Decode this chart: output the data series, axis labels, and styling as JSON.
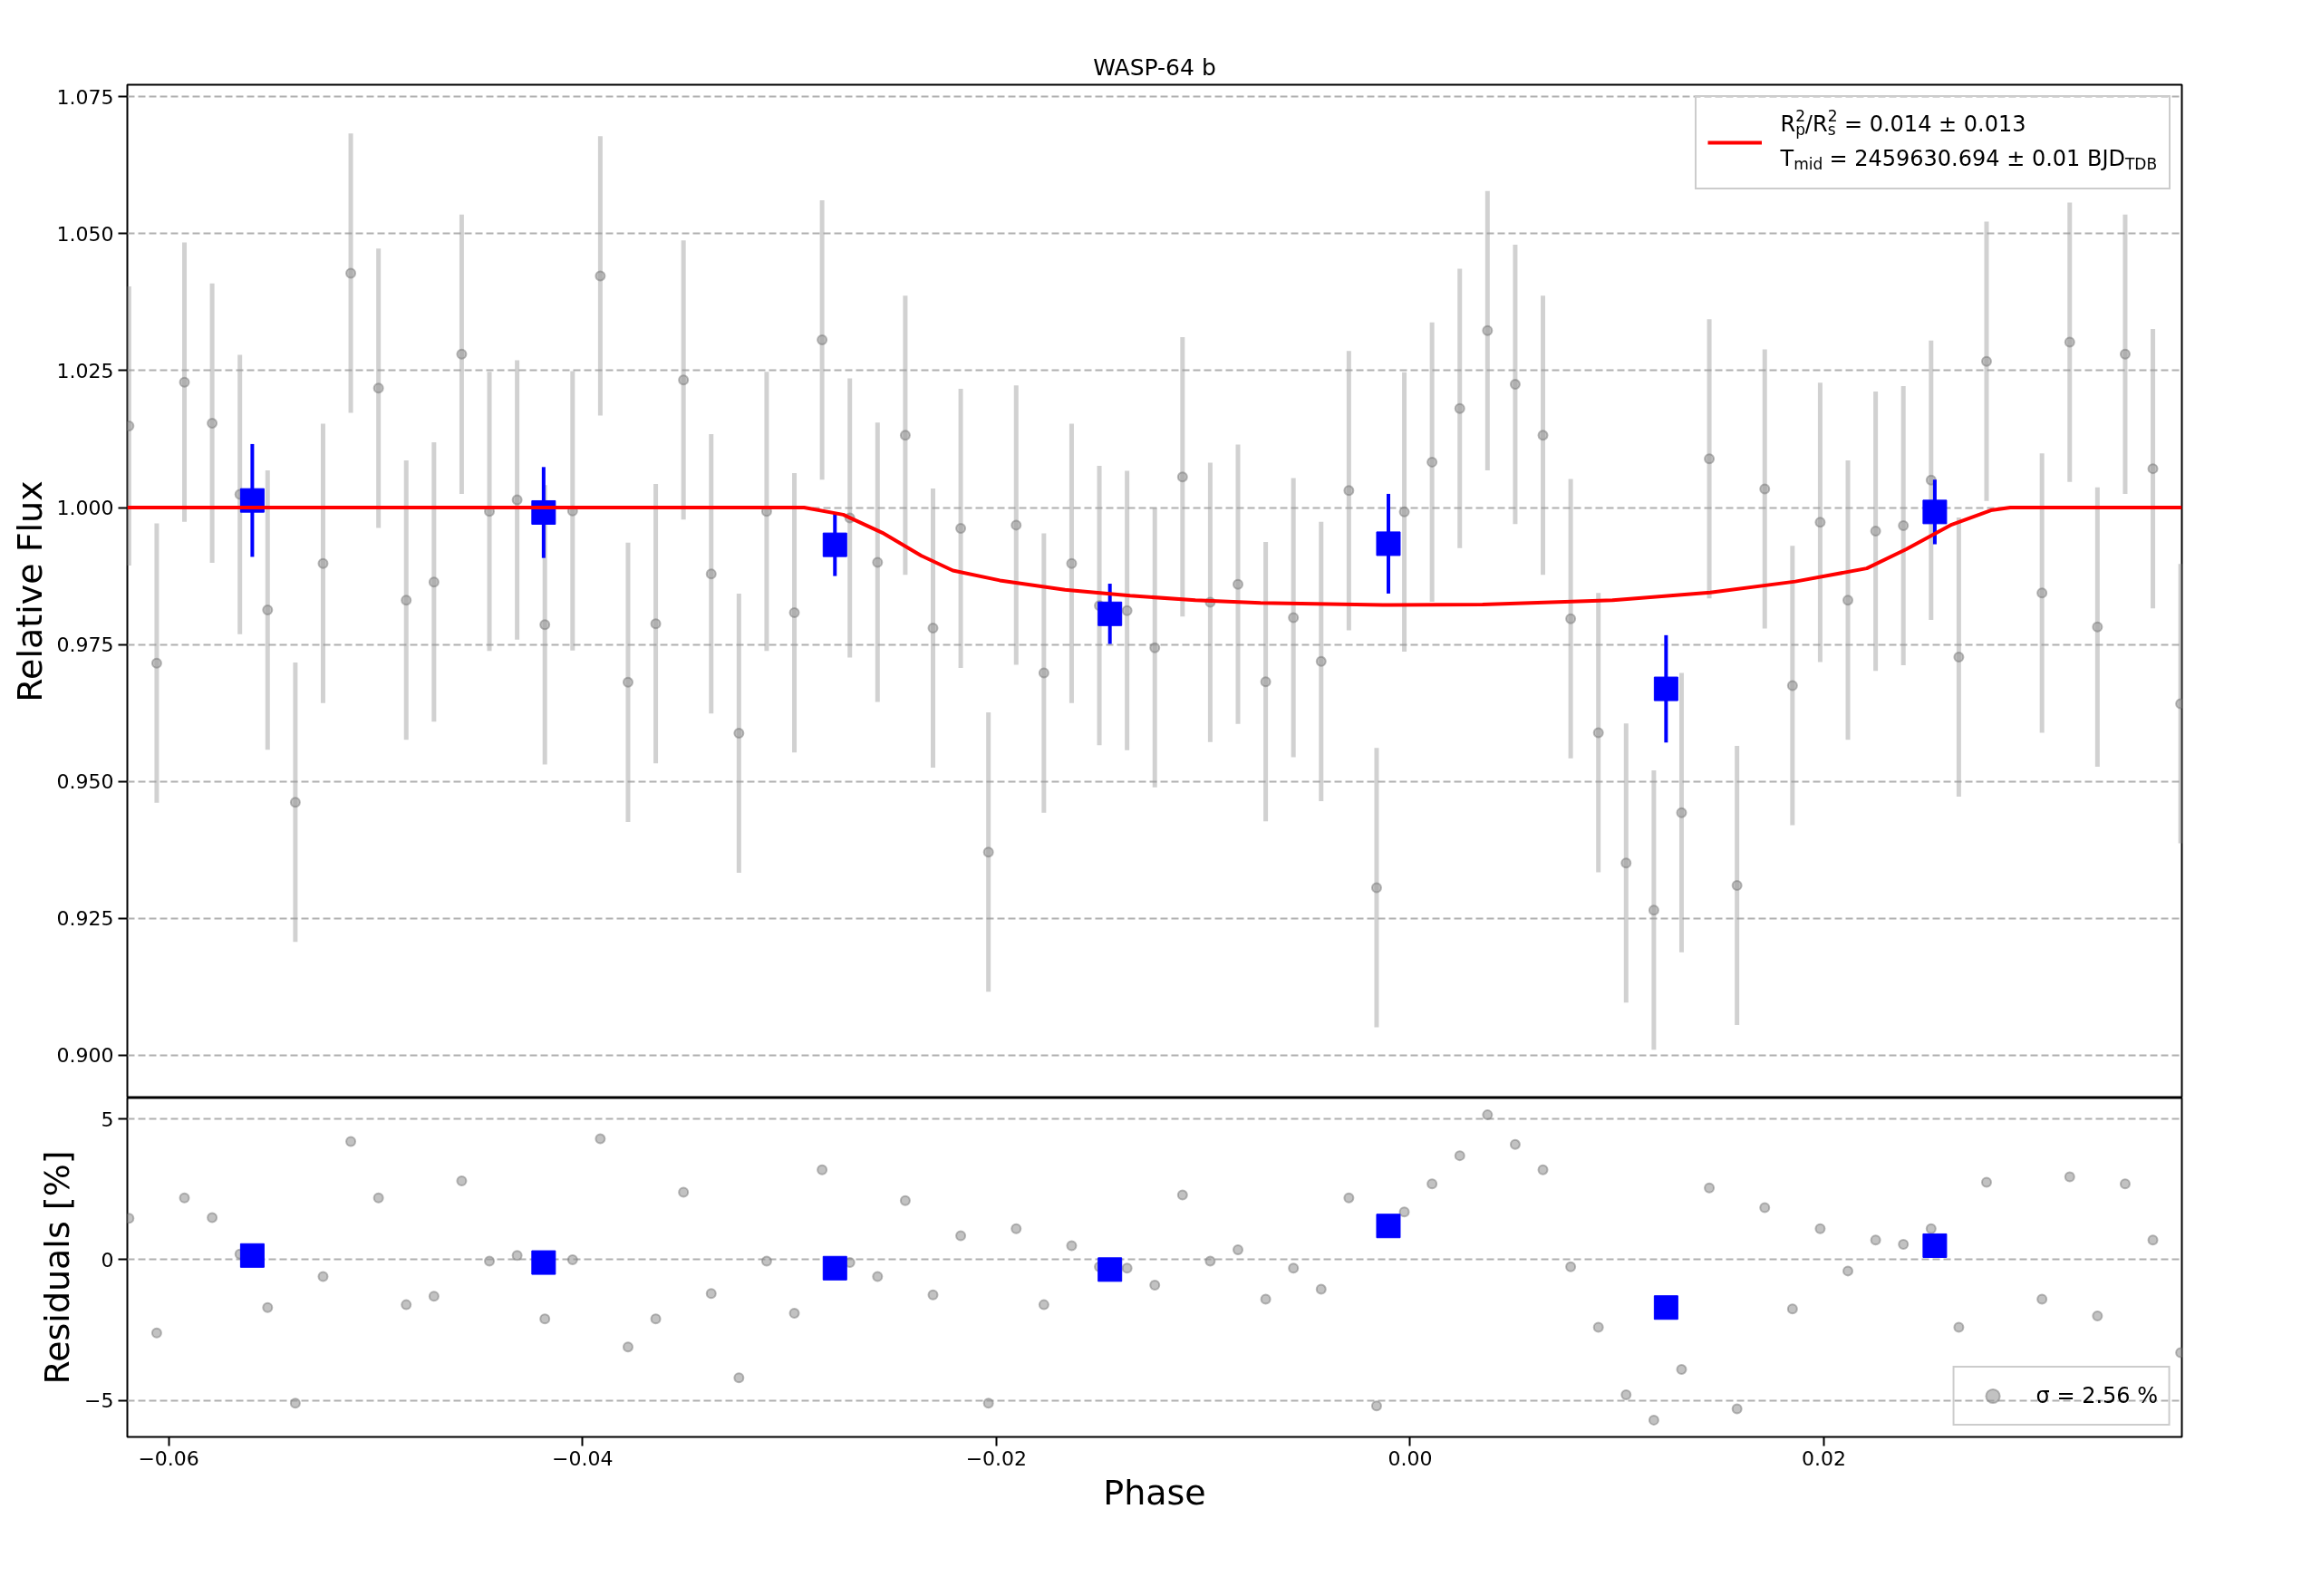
{
  "chart_data": [
    {
      "type": "scatter",
      "title": "WASP-64 b",
      "ylabel": "Relative Flux",
      "xlim": [
        -0.062,
        0.0373
      ],
      "ylim": [
        0.8922,
        1.0772
      ],
      "yticks": [
        {
          "value": 0.9,
          "label": "0.900"
        },
        {
          "value": 0.925,
          "label": "0.925"
        },
        {
          "value": 0.95,
          "label": "0.950"
        },
        {
          "value": 0.975,
          "label": "0.975"
        },
        {
          "value": 1.0,
          "label": "1.000"
        },
        {
          "value": 1.025,
          "label": "1.025"
        },
        {
          "value": 1.05,
          "label": "1.050"
        },
        {
          "value": 1.075,
          "label": "1.075"
        }
      ],
      "grid": "y",
      "tick_labels": "y",
      "legend": "top right",
      "series": [
        {
          "marker": "circle",
          "color": "#999999",
          "x": [
            -0.06192,
            -0.06058,
            -0.05924,
            -0.0579,
            -0.05656,
            -0.05522,
            -0.05388,
            -0.05254,
            -0.0512,
            -0.04986,
            -0.04852,
            -0.04718,
            -0.04584,
            -0.0445,
            -0.04316,
            -0.04182,
            -0.04048,
            -0.03914,
            -0.0378,
            -0.03646,
            -0.03512,
            -0.03378,
            -0.03244,
            -0.0311,
            -0.02976,
            -0.02842,
            -0.02708,
            -0.02574,
            -0.0244,
            -0.02306,
            -0.02172,
            -0.02038,
            -0.01904,
            -0.0177,
            -0.01636,
            -0.01502,
            -0.01368,
            -0.01234,
            -0.011,
            -0.00966,
            -0.00832,
            -0.00698,
            -0.00564,
            -0.0043,
            -0.00296,
            -0.00162,
            -0.00028,
            0.00106,
            0.0024,
            0.00374,
            0.00508,
            0.00642,
            0.00776,
            0.0091,
            0.01044,
            0.01178,
            0.01312,
            0.01446,
            0.0158,
            0.01714,
            0.01848,
            0.01982,
            0.02116,
            0.0225,
            0.02384,
            0.02518,
            0.02652,
            0.02786,
            0.03054,
            0.03188,
            0.03322,
            0.03456,
            0.0359,
            0.03724
          ],
          "values": [
            1.0149,
            0.9716,
            1.0229,
            1.0154,
            1.0024,
            0.9813,
            0.9462,
            0.9898,
            1.0428,
            1.0218,
            0.9831,
            0.9864,
            1.028,
            0.9993,
            1.0014,
            0.9786,
            0.9994,
            1.0423,
            0.9681,
            0.9788,
            1.0233,
            0.9879,
            0.9588,
            0.9993,
            0.9808,
            1.0306,
            0.9981,
            0.99,
            1.0132,
            0.978,
            0.9962,
            0.9371,
            0.9968,
            0.9698,
            0.9898,
            0.9821,
            0.9812,
            0.9744,
            1.0056,
            0.9827,
            0.986,
            0.9682,
            0.9799,
            0.9719,
            1.0031,
            0.9306,
            0.9992,
            1.0083,
            1.0181,
            1.0323,
            1.0225,
            1.0132,
            0.9797,
            0.9589,
            0.9351,
            0.9265,
            0.9443,
            1.0089,
            0.931,
            1.0034,
            0.9675,
            0.9973,
            0.9831,
            0.9957,
            0.9967,
            1.005,
            0.9727,
            1.0267,
            0.9844,
            1.0302,
            0.9782,
            1.028,
            1.0071,
            0.9642
          ],
          "errors": [
            0.0255,
            0.0255,
            0.0255,
            0.0255,
            0.0255,
            0.0255,
            0.0255,
            0.0255,
            0.0255,
            0.0255,
            0.0255,
            0.0255,
            0.0255,
            0.0255,
            0.0255,
            0.0255,
            0.0255,
            0.0255,
            0.0255,
            0.0255,
            0.0255,
            0.0255,
            0.0255,
            0.0255,
            0.0255,
            0.0255,
            0.0255,
            0.0255,
            0.0255,
            0.0255,
            0.0255,
            0.0255,
            0.0255,
            0.0255,
            0.0255,
            0.0255,
            0.0255,
            0.0255,
            0.0255,
            0.0255,
            0.0255,
            0.0255,
            0.0255,
            0.0255,
            0.0255,
            0.0255,
            0.0255,
            0.0255,
            0.0255,
            0.0255,
            0.0255,
            0.0255,
            0.0255,
            0.0255,
            0.0255,
            0.0255,
            0.0255,
            0.0255,
            0.0255,
            0.0255,
            0.0255,
            0.0255,
            0.0255,
            0.0255,
            0.0255,
            0.0255,
            0.0255,
            0.0255,
            0.0255,
            0.0255,
            0.0255,
            0.0255,
            0.0255,
            0.0255
          ]
        },
        {
          "marker": "square",
          "color": "#0000ff",
          "x": [
            -0.05596,
            -0.04188,
            -0.0278,
            -0.01451,
            -0.00105,
            0.01237,
            0.02536
          ],
          "values": [
            1.0013,
            0.9991,
            0.9932,
            0.9806,
            0.9934,
            0.9669,
            0.9992
          ],
          "errors": [
            0.0103,
            0.0083,
            0.0057,
            0.0055,
            0.0091,
            0.0098,
            0.0059
          ]
        },
        {
          "type": "line",
          "line_style": "solid",
          "color": "#ff0000",
          "name": "R$_{p}$$^{2}$/R$_{s}$$^{2}$ = 0.014 ± 0.013\nT$_{mid}$ = 2459630.694 ± 0.01 BJD$_{TDB}$",
          "x": [
            -0.062,
            -0.02929,
            -0.0274,
            -0.02551,
            -0.02362,
            -0.0221,
            -0.01983,
            -0.01668,
            -0.01353,
            -0.01038,
            -0.00723,
            -0.00092,
            0.0035,
            0.0098,
            0.01451,
            0.01862,
            0.02207,
            0.02398,
            0.02618,
            0.02807,
            0.02901,
            0.0373
          ],
          "values": [
            1.0,
            1.0,
            0.9987,
            0.9954,
            0.9912,
            0.9885,
            0.9867,
            0.985,
            0.9839,
            0.9831,
            0.9826,
            0.9822,
            0.9823,
            0.9831,
            0.9845,
            0.9865,
            0.9889,
            0.9924,
            0.9969,
            0.9995,
            1.0,
            1.0
          ]
        }
      ]
    },
    {
      "type": "scatter",
      "xlabel": "Phase",
      "ylabel": "Residuals [%]",
      "xlim": [
        -0.062,
        0.0373
      ],
      "ylim": [
        -6.3,
        5.75
      ],
      "xticks": [
        {
          "value": -0.06,
          "label": "−0.06"
        },
        {
          "value": -0.04,
          "label": "−0.04"
        },
        {
          "value": -0.02,
          "label": "−0.02"
        },
        {
          "value": 0,
          "label": "0.00"
        },
        {
          "value": 0.02,
          "label": "0.02"
        }
      ],
      "yticks": [
        {
          "value": -5,
          "label": "−5"
        },
        0,
        5
      ],
      "grid": "y",
      "legend": "bottom right",
      "series": [
        {
          "marker": "circle",
          "color": "#999999",
          "name": "σ = 2.56 %",
          "x": [
            -0.06192,
            -0.06058,
            -0.05924,
            -0.0579,
            -0.05656,
            -0.05522,
            -0.05388,
            -0.05254,
            -0.0512,
            -0.04986,
            -0.04852,
            -0.04718,
            -0.04584,
            -0.0445,
            -0.04316,
            -0.04182,
            -0.04048,
            -0.03914,
            -0.0378,
            -0.03646,
            -0.03512,
            -0.03378,
            -0.03244,
            -0.0311,
            -0.02976,
            -0.02842,
            -0.02708,
            -0.02574,
            -0.0244,
            -0.02306,
            -0.02172,
            -0.02038,
            -0.01904,
            -0.0177,
            -0.01636,
            -0.01502,
            -0.01368,
            -0.01234,
            -0.011,
            -0.00966,
            -0.00832,
            -0.00698,
            -0.00564,
            -0.0043,
            -0.00296,
            -0.00162,
            -0.00028,
            0.00106,
            0.0024,
            0.00374,
            0.00508,
            0.00642,
            0.00776,
            0.0091,
            0.01044,
            0.01178,
            0.01312,
            0.01446,
            0.0158,
            0.01714,
            0.01848,
            0.01982,
            0.02116,
            0.0225,
            0.02384,
            0.02518,
            0.02652,
            0.02786,
            0.03054,
            0.03188,
            0.03322,
            0.03456,
            0.0359,
            0.03724
          ],
          "values": [
            1.47,
            -2.6,
            2.2,
            1.5,
            0.2,
            -1.7,
            -5.1,
            -0.6,
            4.2,
            2.2,
            -1.6,
            -1.3,
            2.8,
            -0.05,
            0.15,
            -2.1,
            0.0,
            4.3,
            -3.1,
            -2.1,
            2.4,
            -1.2,
            -4.2,
            -0.05,
            -1.9,
            3.2,
            -0.1,
            -0.6,
            2.1,
            -1.25,
            0.85,
            -5.1,
            1.1,
            -1.6,
            0.5,
            -0.25,
            -0.3,
            -0.9,
            2.3,
            -0.05,
            0.35,
            -1.4,
            -0.3,
            -1.05,
            2.2,
            -5.2,
            1.7,
            2.7,
            3.7,
            5.15,
            4.1,
            3.2,
            -0.25,
            -2.4,
            -4.8,
            -5.7,
            -3.9,
            2.55,
            -5.3,
            1.85,
            -1.75,
            1.1,
            -0.4,
            0.7,
            0.55,
            1.1,
            -2.4,
            2.75,
            -1.4,
            2.95,
            -2.0,
            2.7,
            0.7,
            -3.3
          ]
        },
        {
          "marker": "square",
          "color": "#0000ff",
          "x": [
            -0.05596,
            -0.04188,
            -0.0278,
            -0.01451,
            -0.00105,
            0.01237,
            0.02536
          ],
          "values": [
            0.15,
            -0.1,
            -0.3,
            -0.35,
            1.2,
            -1.7,
            0.5
          ]
        }
      ]
    }
  ]
}
